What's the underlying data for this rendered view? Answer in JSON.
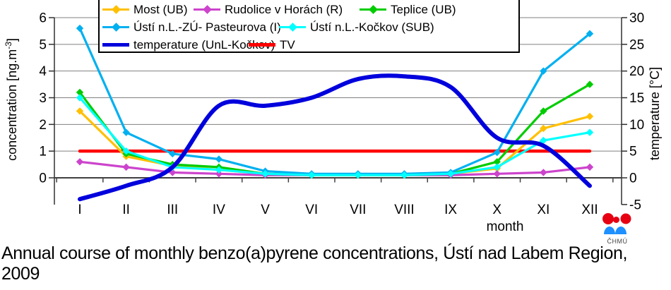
{
  "labels": {
    "y_left_pre": "concentration [ng.m",
    "y_left_sup": "-3",
    "y_left_post": "]",
    "y_right": "temperature [°C]",
    "x_title": "month",
    "caption_line1": "Annual course of monthly benzo(a)pyrene concentrations, Ústí nad Labem Region,",
    "caption_line2": "2009",
    "logo_label": "ČHMÚ"
  },
  "chart_data": {
    "type": "line",
    "title": "Annual course of monthly benzo(a)pyrene concentrations, Ústí nad Labem Region, 2009",
    "categories": [
      "I",
      "II",
      "III",
      "IV",
      "V",
      "VI",
      "VII",
      "VIII",
      "IX",
      "X",
      "XI",
      "XII"
    ],
    "x_label": "month",
    "grid": true,
    "legend_position": "top",
    "y_left": {
      "label": "concentration [ng.m-3]",
      "ticks": [
        0,
        1,
        2,
        3,
        4,
        5,
        6
      ],
      "max": 6
    },
    "y_right": {
      "label": "temperature [°C]",
      "ticks": [
        -5,
        0,
        5,
        10,
        15,
        20,
        25,
        30
      ],
      "min": -5,
      "max": 30
    },
    "series": [
      {
        "name": "Most (UB)",
        "axis": "left",
        "color": "#FFC000",
        "marker": "diamond",
        "smooth": false,
        "width": 3.2,
        "values": [
          2.5,
          0.8,
          0.45,
          0.3,
          0.15,
          0.1,
          0.1,
          0.1,
          0.15,
          0.35,
          1.85,
          2.3
        ]
      },
      {
        "name": "Rudolice v Horách (R)",
        "axis": "left",
        "color": "#CC44CC",
        "marker": "diamond",
        "smooth": false,
        "width": 3.2,
        "values": [
          0.6,
          0.4,
          0.2,
          0.15,
          0.1,
          0.1,
          0.1,
          0.1,
          0.1,
          0.15,
          0.2,
          0.4
        ]
      },
      {
        "name": "Teplice  (UB)",
        "axis": "left",
        "color": "#00CC00",
        "marker": "diamond",
        "smooth": false,
        "width": 3.2,
        "values": [
          3.2,
          0.9,
          0.5,
          0.4,
          0.15,
          0.1,
          0.1,
          0.1,
          0.15,
          0.6,
          2.5,
          3.5
        ]
      },
      {
        "name": "Ústí n.L.-ZÚ- Pasteurova (I)",
        "axis": "left",
        "color": "#00B0F0",
        "marker": "diamond",
        "smooth": false,
        "width": 3.2,
        "values": [
          5.6,
          1.7,
          0.9,
          0.7,
          0.25,
          0.15,
          0.15,
          0.15,
          0.2,
          0.95,
          4.0,
          5.4
        ]
      },
      {
        "name": "Ústí n.L.-Kočkov (SUB)",
        "axis": "left",
        "color": "#00FFFF",
        "marker": "diamond",
        "smooth": false,
        "width": 3.2,
        "values": [
          3.0,
          1.0,
          0.4,
          0.3,
          0.15,
          0.1,
          0.1,
          0.1,
          0.15,
          0.4,
          1.4,
          1.7
        ]
      },
      {
        "name": "temperature (UnL-Kočkov)",
        "axis": "right",
        "color": "#0000DD",
        "marker": "none",
        "smooth": true,
        "width": 6,
        "values": [
          -4,
          -1.5,
          2,
          13.5,
          13.5,
          15,
          18.5,
          19,
          17,
          7.5,
          6,
          -1.5
        ]
      },
      {
        "name": "TV",
        "axis": "left",
        "color": "#FF0000",
        "marker": "none",
        "smooth": false,
        "width": 4.5,
        "values": [
          1,
          1,
          1,
          1,
          1,
          1,
          1,
          1,
          1,
          1,
          1,
          1
        ]
      }
    ]
  }
}
